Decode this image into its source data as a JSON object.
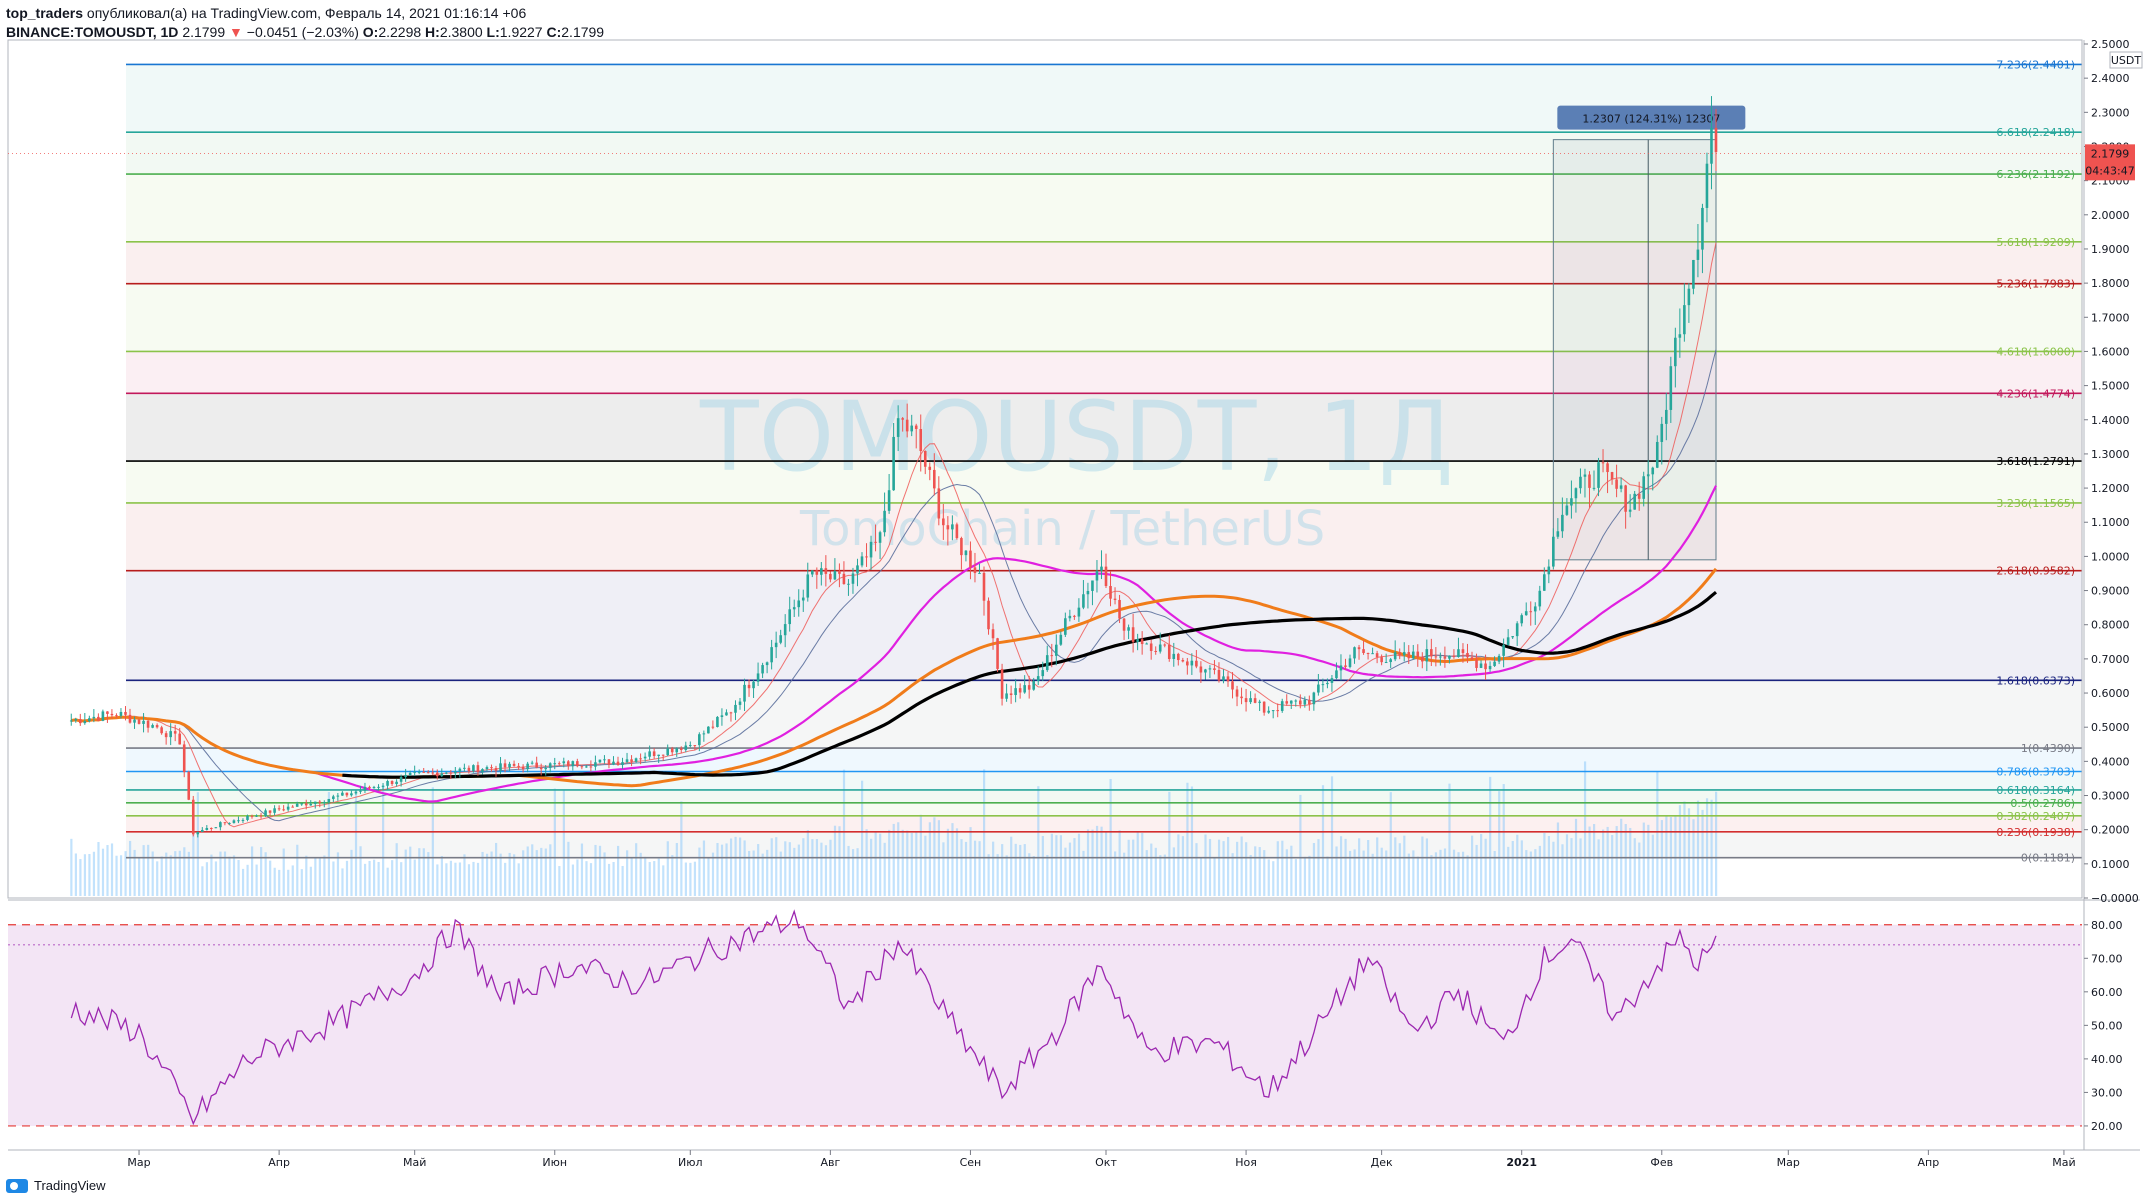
{
  "header": {
    "publisher": "top_traders",
    "published_text": "опубликовал(а) на TradingView.com, Февраль 14, 2021 01:16:14 +06",
    "symbol": "BINANCE:TOMOUSDT, 1D",
    "last": "2.1799",
    "change": "−0.0451 (−2.03%)",
    "o_label": "O:",
    "o": "2.2298",
    "h_label": "H:",
    "h": "2.3800",
    "l_label": "L:",
    "l": "1.9227",
    "c_label": "C:",
    "c": "2.1799"
  },
  "watermark": {
    "line1": "TOMOUSDT, 1Д",
    "line2": "TomoChain / TetherUS"
  },
  "footer": {
    "brand": "TradingView"
  },
  "colors": {
    "rsi_line": "#9c27b0",
    "rsi_bg": "#f3e5f5",
    "ma_short": "#ef5350",
    "ma_mid": "#5b6f9c",
    "ma_magenta": "#e020e0",
    "ma_orange": "#f07c1a",
    "ma_black": "#000000",
    "volume": "#90caf9",
    "price_tag": "#ef5350"
  },
  "chart_data": {
    "type": "candlestick",
    "currency": "USDT",
    "price_axis": {
      "min": 0.0,
      "max": 2.5,
      "ticks": [
        "2.5000",
        "2.4000",
        "2.3000",
        "2.2000",
        "2.1000",
        "2.0000",
        "1.9000",
        "1.8000",
        "1.7000",
        "1.6000",
        "1.5000",
        "1.4000",
        "1.3000",
        "1.2000",
        "1.1000",
        "1.0000",
        "0.9000",
        "0.8000",
        "0.7000",
        "0.6000",
        "0.5000",
        "0.4000",
        "0.3000",
        "0.2000",
        "0.1000",
        "−0.0000"
      ]
    },
    "price_tag": {
      "value": "2.1799",
      "countdown": "04:43:47"
    },
    "months": [
      "Мар",
      "Апр",
      "Май",
      "Июн",
      "Июл",
      "Авг",
      "Сен",
      "Окт",
      "Ноя",
      "Дек",
      "2021",
      "Фев",
      "Мар",
      "Апр",
      "Май"
    ],
    "fib_levels": [
      {
        "ratio": "0",
        "price": 0.1181,
        "label": "0(0.1181)",
        "color": "#787b86"
      },
      {
        "ratio": "0.236",
        "price": 0.1938,
        "label": "0.236(0.1938)",
        "color": "#d32f2f"
      },
      {
        "ratio": "0.382",
        "price": 0.2407,
        "label": "0.382(0.2407)",
        "color": "#8bc34a"
      },
      {
        "ratio": "0.5",
        "price": 0.2786,
        "label": "0.5(0.2786)",
        "color": "#4caf50"
      },
      {
        "ratio": "0.618",
        "price": 0.3164,
        "label": "0.618(0.3164)",
        "color": "#26a69a"
      },
      {
        "ratio": "0.786",
        "price": 0.3703,
        "label": "0.786(0.3703)",
        "color": "#2196f3"
      },
      {
        "ratio": "1",
        "price": 0.439,
        "label": "1(0.4390)",
        "color": "#787b86"
      },
      {
        "ratio": "1.618",
        "price": 0.6373,
        "label": "1.618(0.6373)",
        "color": "#1a237e"
      },
      {
        "ratio": "2.618",
        "price": 0.9582,
        "label": "2.618(0.9582)",
        "color": "#b71c1c"
      },
      {
        "ratio": "3.236",
        "price": 1.1565,
        "label": "3.236(1.1565)",
        "color": "#8bc34a"
      },
      {
        "ratio": "3.618",
        "price": 1.2791,
        "label": "3.618(1.2791)",
        "color": "#000000"
      },
      {
        "ratio": "4.236",
        "price": 1.4774,
        "label": "4.236(1.4774)",
        "color": "#c2185b"
      },
      {
        "ratio": "4.618",
        "price": 1.6,
        "label": "4.618(1.6000)",
        "color": "#8bc34a"
      },
      {
        "ratio": "5.236",
        "price": 1.7983,
        "label": "5.236(1.7983)",
        "color": "#b71c1c"
      },
      {
        "ratio": "5.618",
        "price": 1.9209,
        "label": "5.618(1.9209)",
        "color": "#8bc34a"
      },
      {
        "ratio": "6.236",
        "price": 2.1192,
        "label": "6.236(2.1192)",
        "color": "#4caf50"
      },
      {
        "ratio": "6.618",
        "price": 2.2418,
        "label": "6.618(2.2418)",
        "color": "#26a69a"
      },
      {
        "ratio": "7.236",
        "price": 2.4401,
        "label": "7.236(2.4401)",
        "color": "#1976d2"
      }
    ],
    "measure": {
      "label": "1.2307 (124.31%) 12307",
      "from_price": 0.99,
      "to_price": 2.22
    },
    "price_path": [
      [
        "2020-02-15",
        0.52
      ],
      [
        "2020-02-25",
        0.54
      ],
      [
        "2020-03-05",
        0.5
      ],
      [
        "2020-03-10",
        0.46
      ],
      [
        "2020-03-13",
        0.19
      ],
      [
        "2020-03-20",
        0.22
      ],
      [
        "2020-04-01",
        0.26
      ],
      [
        "2020-04-15",
        0.3
      ],
      [
        "2020-05-01",
        0.36
      ],
      [
        "2020-05-15",
        0.38
      ],
      [
        "2020-06-01",
        0.39
      ],
      [
        "2020-06-15",
        0.4
      ],
      [
        "2020-07-01",
        0.45
      ],
      [
        "2020-07-10",
        0.55
      ],
      [
        "2020-07-20",
        0.75
      ],
      [
        "2020-07-28",
        0.95
      ],
      [
        "2020-08-05",
        0.92
      ],
      [
        "2020-08-12",
        1.05
      ],
      [
        "2020-08-16",
        1.4
      ],
      [
        "2020-08-20",
        1.35
      ],
      [
        "2020-08-26",
        1.1
      ],
      [
        "2020-09-03",
        0.95
      ],
      [
        "2020-09-08",
        0.6
      ],
      [
        "2020-09-15",
        0.62
      ],
      [
        "2020-09-22",
        0.8
      ],
      [
        "2020-09-30",
        0.98
      ],
      [
        "2020-10-05",
        0.78
      ],
      [
        "2020-10-15",
        0.72
      ],
      [
        "2020-10-25",
        0.65
      ],
      [
        "2020-11-05",
        0.55
      ],
      [
        "2020-11-15",
        0.58
      ],
      [
        "2020-11-25",
        0.72
      ],
      [
        "2020-12-05",
        0.7
      ],
      [
        "2020-12-15",
        0.72
      ],
      [
        "2020-12-25",
        0.68
      ],
      [
        "2021-01-05",
        0.9
      ],
      [
        "2021-01-10",
        1.15
      ],
      [
        "2021-01-18",
        1.25
      ],
      [
        "2021-01-25",
        1.15
      ],
      [
        "2021-01-31",
        1.3
      ],
      [
        "2021-02-05",
        1.7
      ],
      [
        "2021-02-09",
        1.95
      ],
      [
        "2021-02-12",
        2.25
      ],
      [
        "2021-02-13",
        2.18
      ]
    ],
    "rsi": {
      "ticks": [
        "80.00",
        "70.00",
        "60.00",
        "50.00",
        "40.00",
        "30.00",
        "20.00"
      ],
      "upper": 80,
      "lower": 20,
      "current": 74,
      "path": [
        [
          "2020-02-15",
          55
        ],
        [
          "2020-03-01",
          48
        ],
        [
          "2020-03-13",
          22
        ],
        [
          "2020-03-25",
          40
        ],
        [
          "2020-04-15",
          52
        ],
        [
          "2020-05-01",
          65
        ],
        [
          "2020-05-10",
          79
        ],
        [
          "2020-05-20",
          58
        ],
        [
          "2020-06-05",
          68
        ],
        [
          "2020-06-20",
          62
        ],
        [
          "2020-07-05",
          72
        ],
        [
          "2020-07-25",
          82
        ],
        [
          "2020-08-05",
          55
        ],
        [
          "2020-08-16",
          75
        ],
        [
          "2020-08-28",
          50
        ],
        [
          "2020-09-08",
          30
        ],
        [
          "2020-09-20",
          48
        ],
        [
          "2020-09-30",
          68
        ],
        [
          "2020-10-10",
          42
        ],
        [
          "2020-10-25",
          45
        ],
        [
          "2020-11-06",
          30
        ],
        [
          "2020-11-20",
          55
        ],
        [
          "2020-11-28",
          70
        ],
        [
          "2020-12-08",
          48
        ],
        [
          "2020-12-18",
          60
        ],
        [
          "2020-12-28",
          44
        ],
        [
          "2021-01-06",
          70
        ],
        [
          "2021-01-12",
          76
        ],
        [
          "2021-01-22",
          52
        ],
        [
          "2021-01-30",
          66
        ],
        [
          "2021-02-05",
          76
        ],
        [
          "2021-02-09",
          68
        ],
        [
          "2021-02-13",
          74
        ]
      ]
    }
  }
}
